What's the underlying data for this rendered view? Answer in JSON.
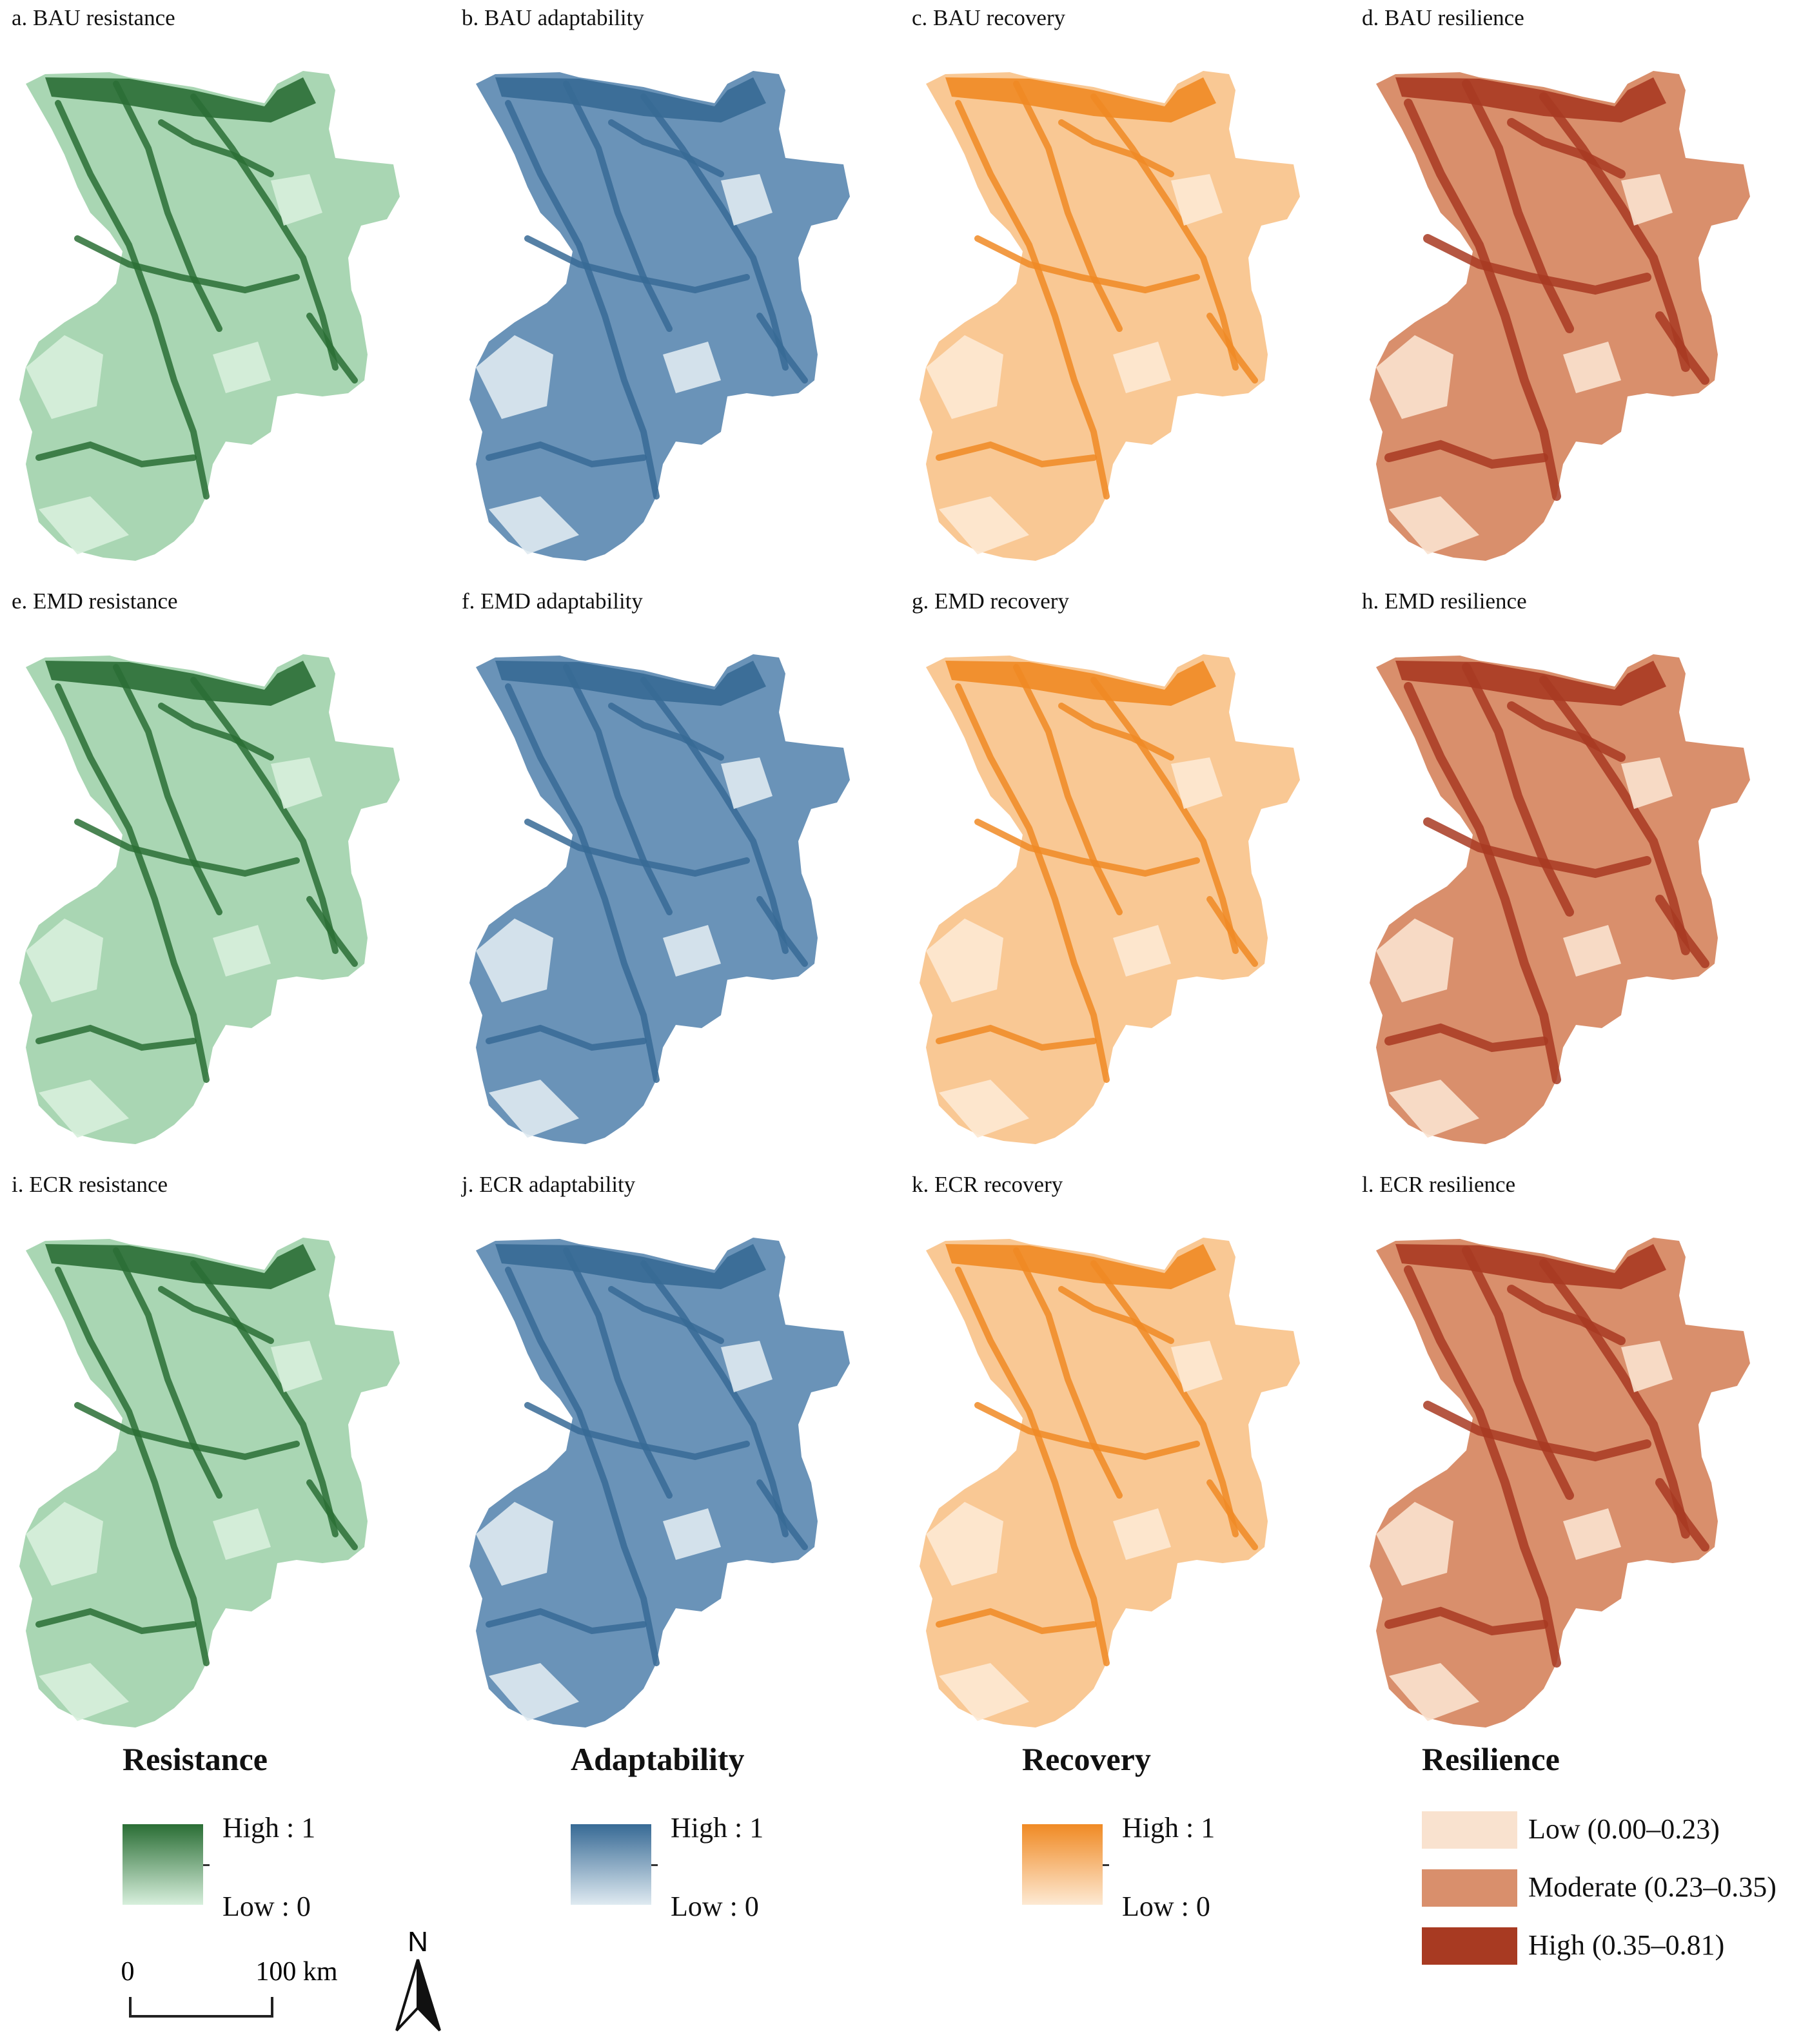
{
  "panels": [
    {
      "id": "a",
      "title": "a. BAU resistance",
      "metric": "resistance"
    },
    {
      "id": "b",
      "title": "b. BAU adaptability",
      "metric": "adaptability"
    },
    {
      "id": "c",
      "title": "c. BAU recovery",
      "metric": "recovery"
    },
    {
      "id": "d",
      "title": "d. BAU resilience",
      "metric": "resilience"
    },
    {
      "id": "e",
      "title": "e. EMD resistance",
      "metric": "resistance"
    },
    {
      "id": "f",
      "title": "f. EMD adaptability",
      "metric": "adaptability"
    },
    {
      "id": "g",
      "title": "g. EMD recovery",
      "metric": "recovery"
    },
    {
      "id": "h",
      "title": "h. EMD resilience",
      "metric": "resilience"
    },
    {
      "id": "i",
      "title": "i. ECR resistance",
      "metric": "resistance"
    },
    {
      "id": "j",
      "title": "j. ECR adaptability",
      "metric": "adaptability"
    },
    {
      "id": "k",
      "title": "k. ECR recovery",
      "metric": "recovery"
    },
    {
      "id": "l",
      "title": "l. ECR resilience",
      "metric": "resilience"
    }
  ],
  "colors": {
    "resistance": {
      "high": "#2a6e35",
      "low": "#d7efdc",
      "mid": "#a9d6b3"
    },
    "adaptability": {
      "high": "#376a95",
      "low": "#dfeaf1",
      "mid": "#6a93b8"
    },
    "recovery": {
      "high": "#f08a24",
      "low": "#fde9d3",
      "mid": "#f9c894"
    },
    "resilience": {
      "low": "#f9e2cf",
      "moderate": "#d98f6c",
      "high": "#a83a22"
    }
  },
  "legends": {
    "resistance": {
      "title": "Resistance",
      "high": "High : 1",
      "low": "Low : 0"
    },
    "adaptability": {
      "title": "Adaptability",
      "high": "High : 1",
      "low": "Low : 0"
    },
    "recovery": {
      "title": "Recovery",
      "high": "High : 1",
      "low": "Low : 0"
    },
    "resilience": {
      "title": "Resilience",
      "classes": [
        "Low (0.00–0.23)",
        "Moderate (0.23–0.35)",
        "High (0.35–0.81)"
      ]
    }
  },
  "scale": {
    "start": "0",
    "end": "100 km"
  },
  "north": "N"
}
